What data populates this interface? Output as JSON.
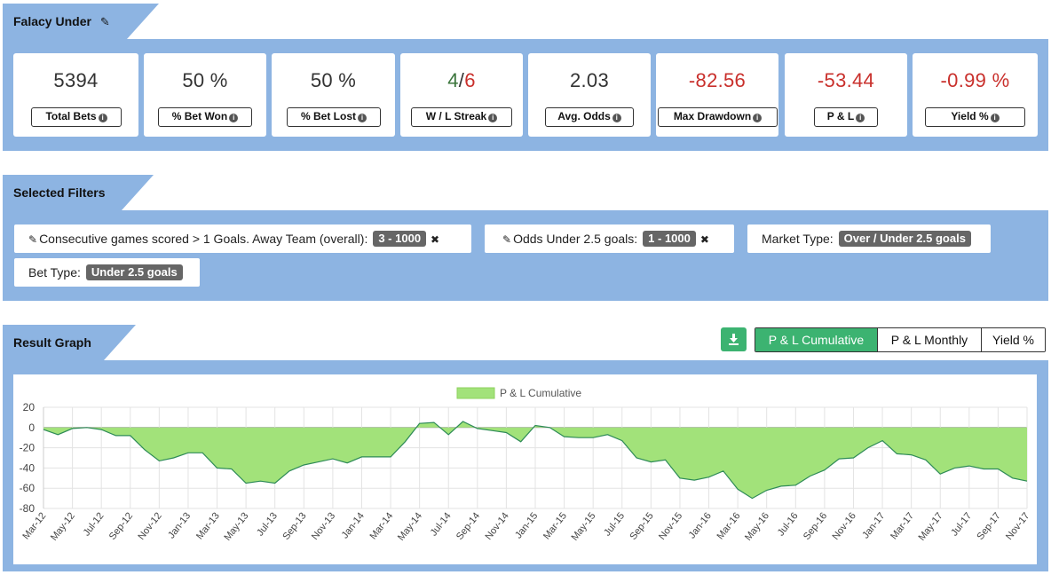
{
  "panel1": {
    "title": "Falacy Under"
  },
  "stats": [
    {
      "value": "5394",
      "label": "Total Bets",
      "negative": false
    },
    {
      "value": "50 %",
      "label": "% Bet Won",
      "negative": false
    },
    {
      "value": "50 %",
      "label": "% Bet Lost",
      "negative": false
    },
    {
      "value": "",
      "label": "W / L Streak",
      "negative": false
    },
    {
      "value": "2.03",
      "label": "Avg. Odds",
      "negative": false
    },
    {
      "value": "-82.56",
      "label": "Max Drawdown",
      "negative": true
    },
    {
      "value": "-53.44",
      "label": "P & L",
      "negative": true
    },
    {
      "value": "-0.99 %",
      "label": "Yield %",
      "negative": true
    }
  ],
  "streak": {
    "win": "4",
    "sep": "/",
    "loss": "6"
  },
  "filters_panel": {
    "title": "Selected Filters"
  },
  "filters": [
    {
      "label": "Consecutive games scored > 1 Goals. Away Team (overall):",
      "tag": "3 - 1000"
    },
    {
      "label": "Odds Under 2.5 goals:",
      "tag": "1 - 1000"
    },
    {
      "label": "Market Type:",
      "tag": "Over / Under 2.5 goals"
    },
    {
      "label": "Bet Type:",
      "tag": "Under 2.5 goals"
    }
  ],
  "graph_panel": {
    "title": "Result Graph"
  },
  "graph_buttons": {
    "cumulative": "P & L Cumulative",
    "monthly": "P & L Monthly",
    "yield": "Yield %"
  },
  "icons": {
    "edit": "pencil-icon",
    "info": "info-circle-icon",
    "download": "download-icon",
    "remove": "close-icon"
  },
  "colors": {
    "accent": "#3cb371",
    "negative": "#c9302c",
    "band": "#8db4e2",
    "area": "#a2e27a"
  },
  "chart_data": {
    "type": "area",
    "legend": "P & L Cumulative",
    "ylim": [
      -80,
      20
    ],
    "yticks": [
      20,
      0,
      -20,
      -40,
      -60,
      -80
    ],
    "grid": true,
    "x": [
      "Mar-12",
      "Apr-12",
      "May-12",
      "Jun-12",
      "Jul-12",
      "Aug-12",
      "Sep-12",
      "Oct-12",
      "Nov-12",
      "Dec-12",
      "Jan-13",
      "Feb-13",
      "Mar-13",
      "Apr-13",
      "May-13",
      "Jun-13",
      "Jul-13",
      "Aug-13",
      "Sep-13",
      "Oct-13",
      "Nov-13",
      "Dec-13",
      "Jan-14",
      "Feb-14",
      "Mar-14",
      "Apr-14",
      "May-14",
      "Jun-14",
      "Jul-14",
      "Aug-14",
      "Sep-14",
      "Oct-14",
      "Nov-14",
      "Dec-14",
      "Jan-15",
      "Feb-15",
      "Mar-15",
      "Apr-15",
      "May-15",
      "Jun-15",
      "Jul-15",
      "Aug-15",
      "Sep-15",
      "Oct-15",
      "Nov-15",
      "Dec-15",
      "Jan-16",
      "Feb-16",
      "Mar-16",
      "Apr-16",
      "May-16",
      "Jun-16",
      "Jul-16",
      "Aug-16",
      "Sep-16",
      "Oct-16",
      "Nov-16",
      "Dec-16",
      "Jan-17",
      "Feb-17",
      "Mar-17",
      "Apr-17",
      "May-17",
      "Jun-17",
      "Jul-17",
      "Aug-17",
      "Sep-17",
      "Oct-17",
      "Nov-17"
    ],
    "y": [
      -2,
      -7,
      -1,
      0,
      -2,
      -8,
      -8,
      -22,
      -33,
      -30,
      -25,
      -25,
      -40,
      -41,
      -55,
      -53,
      -55,
      -43,
      -37,
      -34,
      -31,
      -35,
      -29,
      -29,
      -29,
      -14,
      4,
      5,
      -7,
      6,
      -1,
      -3,
      -5,
      -14,
      2,
      0,
      -9,
      -10,
      -10,
      -7,
      -13,
      -30,
      -34,
      -32,
      -50,
      -52,
      -49,
      -43,
      -61,
      -70,
      -62,
      -58,
      -57,
      -48,
      -42,
      -31,
      -30,
      -20,
      -13,
      -26,
      -27,
      -32,
      -46,
      -40,
      -38,
      -41,
      -41,
      -50,
      -53
    ],
    "xticks": [
      "Mar-12",
      "May-12",
      "Jul-12",
      "Sep-12",
      "Nov-12",
      "Jan-13",
      "Mar-13",
      "May-13",
      "Jul-13",
      "Sep-13",
      "Nov-13",
      "Jan-14",
      "Mar-14",
      "May-14",
      "Jul-14",
      "Sep-14",
      "Nov-14",
      "Jan-15",
      "Mar-15",
      "May-15",
      "Jul-15",
      "Sep-15",
      "Nov-15",
      "Jan-16",
      "Mar-16",
      "May-16",
      "Jul-16",
      "Sep-16",
      "Nov-16",
      "Jan-17",
      "Mar-17",
      "May-17",
      "Jul-17",
      "Sep-17",
      "Nov-17"
    ]
  }
}
